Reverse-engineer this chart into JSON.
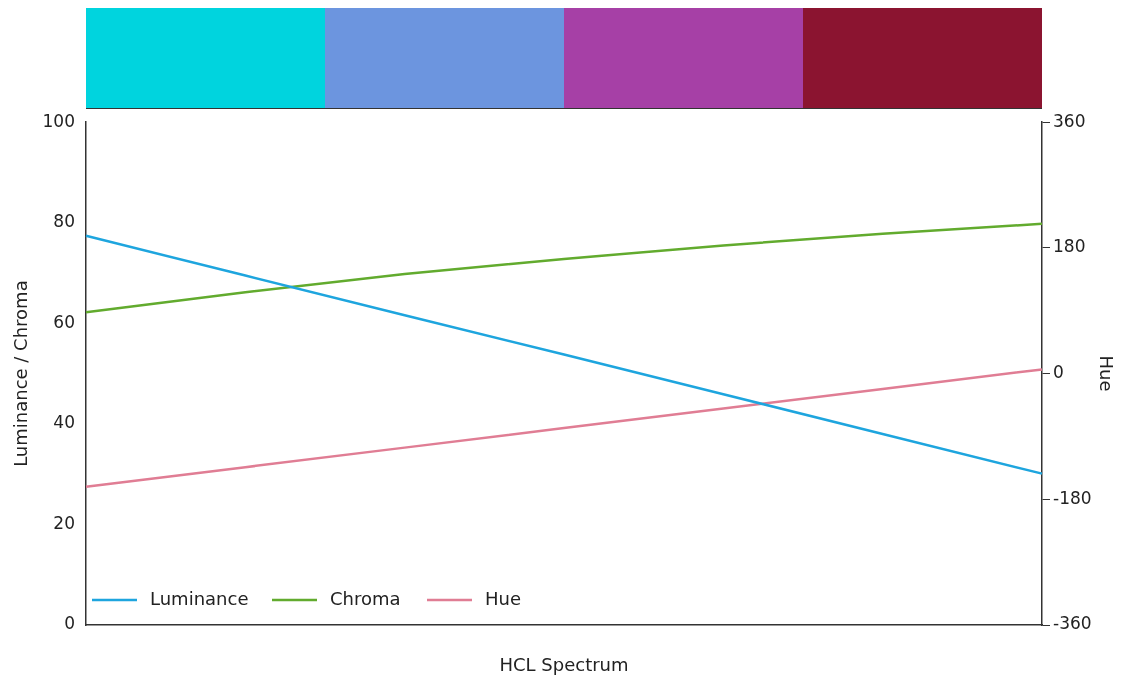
{
  "chart_data": {
    "type": "line",
    "xlabel": "HCL Spectrum",
    "ylabel": "Luminance / Chroma",
    "y2label": "Hue",
    "categories": [
      null,
      null,
      null,
      null,
      null,
      null,
      null
    ],
    "colors": [
      "#00d4de",
      "#6c95df",
      "#a640a6",
      "#8b1430"
    ],
    "series": [
      {
        "name": "Luminance",
        "color": "#1ea5de",
        "values": [
          77.4,
          69.5,
          61.6,
          53.8,
          45.9,
          38.0,
          30.1
        ]
      },
      {
        "name": "Chroma",
        "color": "#62ab2e",
        "values": [
          62.2,
          66.2,
          69.8,
          72.8,
          75.5,
          77.8,
          79.8
        ]
      },
      {
        "name": "Hue",
        "color": "#e07d94",
        "axis": "y2",
        "values": [
          -162,
          -134,
          -106,
          -78,
          -50,
          -22,
          6
        ]
      }
    ],
    "ylim": [
      0,
      100
    ],
    "yticks": [
      0,
      20,
      40,
      60,
      80,
      100
    ],
    "y2lim": [
      -360,
      360
    ],
    "y2ticks": [
      -360,
      -180,
      0,
      180,
      360
    ],
    "grid": false,
    "legend": "bottom left",
    "marker": "none",
    "line_style": "solid"
  }
}
